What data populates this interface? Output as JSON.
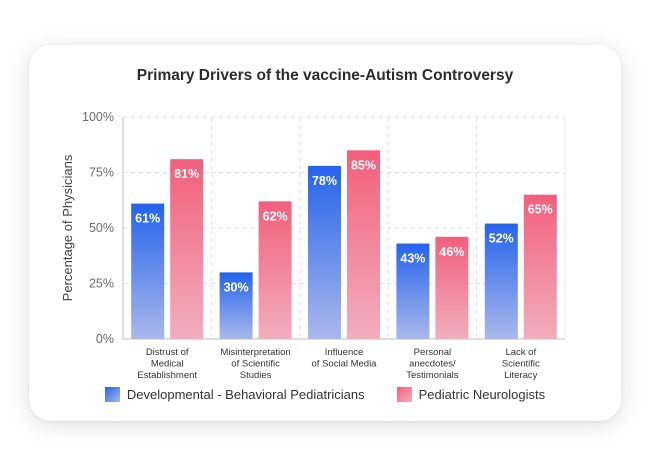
{
  "chart_data": {
    "type": "bar",
    "title": "Primary Drivers of the vaccine-Autism Controversy",
    "ylabel": "Percentage of Physicians",
    "xlabel": "",
    "ylim": [
      0,
      100
    ],
    "yticks": [
      0,
      25,
      50,
      75,
      100
    ],
    "ytick_labels": [
      "0%",
      "25%",
      "50%",
      "75%",
      "100%"
    ],
    "grid": true,
    "legend_position": "bottom",
    "categories": [
      [
        "Distrust of",
        "Medical",
        "Establishment"
      ],
      [
        "Misinterpretation",
        "of Scientific",
        "Studies"
      ],
      [
        "Influence",
        "of Social Media"
      ],
      [
        "Personal",
        "anecdotes/",
        "Testimonials"
      ],
      [
        "Lack of",
        "Scientific",
        "Literacy"
      ]
    ],
    "series": [
      {
        "name": "Developmental - Behavioral Pediatricians",
        "values": [
          61,
          30,
          78,
          43,
          52
        ],
        "labels": [
          "61%",
          "30%",
          "78%",
          "43%",
          "52%"
        ],
        "color_top": "#2563eb",
        "color_bottom": "#a9b8ec"
      },
      {
        "name": "Pediatric Neurologists",
        "values": [
          81,
          62,
          85,
          46,
          65
        ],
        "labels": [
          "81%",
          "62%",
          "85%",
          "46%",
          "65%"
        ],
        "color_top": "#f25f7c",
        "color_bottom": "#f2aebd"
      }
    ]
  }
}
